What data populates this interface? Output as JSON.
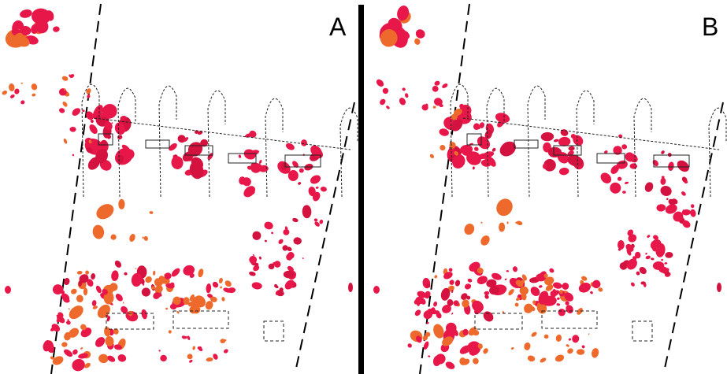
{
  "panels": [
    {
      "id": "A",
      "label": "A"
    },
    {
      "id": "B",
      "label": "B"
    }
  ],
  "colors": {
    "background": "#ffffff",
    "divider": "#000000",
    "outline": "#222222",
    "red": "#e8174a",
    "crimson": "#d4123f",
    "orange": "#ee6a2c"
  }
}
